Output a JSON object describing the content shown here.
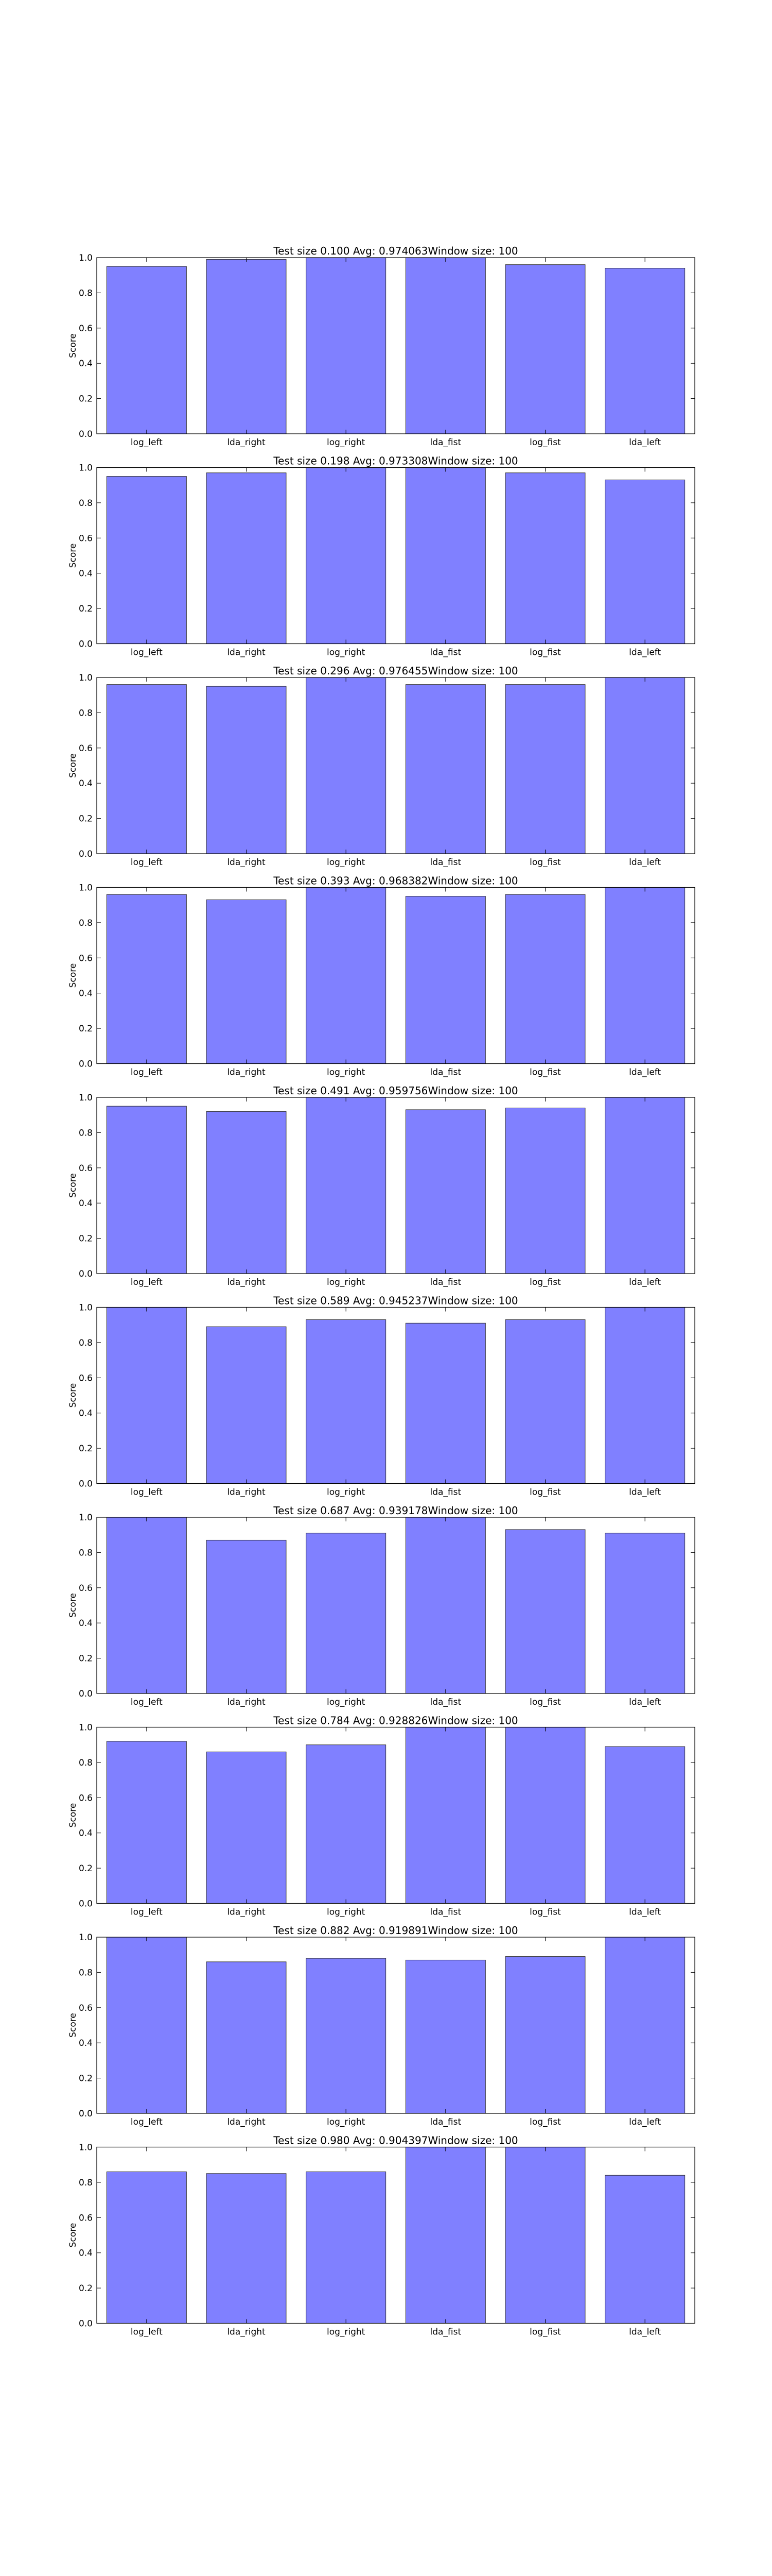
{
  "figure": {
    "background": "#ffffff",
    "bar_color": "#8080ff",
    "bar_edge_color": "#2b2b2b",
    "axes_color": "#000000"
  },
  "chart_data": [
    {
      "type": "bar",
      "title": "Test size 0.100 Avg: 0.974063Window size: 100",
      "xlabel": "",
      "ylabel": "Score",
      "ylim": [
        0,
        1
      ],
      "yticks": [
        "0.0",
        "0.2",
        "0.4",
        "0.6",
        "0.8",
        "1.0"
      ],
      "grid": false,
      "categories": [
        "log_left",
        "lda_right",
        "log_right",
        "lda_fist",
        "log_fist",
        "lda_left"
      ],
      "values": [
        0.95,
        0.99,
        1.0,
        1.0,
        0.96,
        0.94
      ]
    },
    {
      "type": "bar",
      "title": "Test size 0.198 Avg: 0.973308Window size: 100",
      "xlabel": "",
      "ylabel": "Score",
      "ylim": [
        0,
        1
      ],
      "yticks": [
        "0.0",
        "0.2",
        "0.4",
        "0.6",
        "0.8",
        "1.0"
      ],
      "grid": false,
      "categories": [
        "log_left",
        "lda_right",
        "log_right",
        "lda_fist",
        "log_fist",
        "lda_left"
      ],
      "values": [
        0.95,
        0.97,
        1.0,
        1.0,
        0.97,
        0.93
      ]
    },
    {
      "type": "bar",
      "title": "Test size 0.296 Avg: 0.976455Window size: 100",
      "xlabel": "",
      "ylabel": "Score",
      "ylim": [
        0,
        1
      ],
      "yticks": [
        "0.0",
        "0.2",
        "0.4",
        "0.6",
        "0.8",
        "1.0"
      ],
      "grid": false,
      "categories": [
        "log_left",
        "lda_right",
        "log_right",
        "lda_fist",
        "log_fist",
        "lda_left"
      ],
      "values": [
        0.96,
        0.95,
        1.0,
        0.96,
        0.96,
        1.0
      ]
    },
    {
      "type": "bar",
      "title": "Test size 0.393 Avg: 0.968382Window size: 100",
      "xlabel": "",
      "ylabel": "Score",
      "ylim": [
        0,
        1
      ],
      "yticks": [
        "0.0",
        "0.2",
        "0.4",
        "0.6",
        "0.8",
        "1.0"
      ],
      "grid": false,
      "categories": [
        "log_left",
        "lda_right",
        "log_right",
        "lda_fist",
        "log_fist",
        "lda_left"
      ],
      "values": [
        0.96,
        0.93,
        1.0,
        0.95,
        0.96,
        1.0
      ]
    },
    {
      "type": "bar",
      "title": "Test size 0.491 Avg: 0.959756Window size: 100",
      "xlabel": "",
      "ylabel": "Score",
      "ylim": [
        0,
        1
      ],
      "yticks": [
        "0.0",
        "0.2",
        "0.4",
        "0.6",
        "0.8",
        "1.0"
      ],
      "grid": false,
      "categories": [
        "log_left",
        "lda_right",
        "log_right",
        "lda_fist",
        "log_fist",
        "lda_left"
      ],
      "values": [
        0.95,
        0.92,
        1.0,
        0.93,
        0.94,
        1.0
      ]
    },
    {
      "type": "bar",
      "title": "Test size 0.589 Avg: 0.945237Window size: 100",
      "xlabel": "",
      "ylabel": "Score",
      "ylim": [
        0,
        1
      ],
      "yticks": [
        "0.0",
        "0.2",
        "0.4",
        "0.6",
        "0.8",
        "1.0"
      ],
      "grid": false,
      "categories": [
        "log_left",
        "lda_right",
        "log_right",
        "lda_fist",
        "log_fist",
        "lda_left"
      ],
      "values": [
        1.0,
        0.89,
        0.93,
        0.91,
        0.93,
        1.0
      ]
    },
    {
      "type": "bar",
      "title": "Test size 0.687 Avg: 0.939178Window size: 100",
      "xlabel": "",
      "ylabel": "Score",
      "ylim": [
        0,
        1
      ],
      "yticks": [
        "0.0",
        "0.2",
        "0.4",
        "0.6",
        "0.8",
        "1.0"
      ],
      "grid": false,
      "categories": [
        "log_left",
        "lda_right",
        "log_right",
        "lda_fist",
        "log_fist",
        "lda_left"
      ],
      "values": [
        1.0,
        0.87,
        0.91,
        1.0,
        0.93,
        0.91
      ]
    },
    {
      "type": "bar",
      "title": "Test size 0.784 Avg: 0.928826Window size: 100",
      "xlabel": "",
      "ylabel": "Score",
      "ylim": [
        0,
        1
      ],
      "yticks": [
        "0.0",
        "0.2",
        "0.4",
        "0.6",
        "0.8",
        "1.0"
      ],
      "grid": false,
      "categories": [
        "log_left",
        "lda_right",
        "log_right",
        "lda_fist",
        "log_fist",
        "lda_left"
      ],
      "values": [
        0.92,
        0.86,
        0.9,
        1.0,
        1.0,
        0.89
      ]
    },
    {
      "type": "bar",
      "title": "Test size 0.882 Avg: 0.919891Window size: 100",
      "xlabel": "",
      "ylabel": "Score",
      "ylim": [
        0,
        1
      ],
      "yticks": [
        "0.0",
        "0.2",
        "0.4",
        "0.6",
        "0.8",
        "1.0"
      ],
      "grid": false,
      "categories": [
        "log_left",
        "lda_right",
        "log_right",
        "lda_fist",
        "log_fist",
        "lda_left"
      ],
      "values": [
        1.0,
        0.86,
        0.88,
        0.87,
        0.89,
        1.0
      ]
    },
    {
      "type": "bar",
      "title": "Test size 0.980 Avg: 0.904397Window size: 100",
      "xlabel": "",
      "ylabel": "Score",
      "ylim": [
        0,
        1
      ],
      "yticks": [
        "0.0",
        "0.2",
        "0.4",
        "0.6",
        "0.8",
        "1.0"
      ],
      "grid": false,
      "categories": [
        "log_left",
        "lda_right",
        "log_right",
        "lda_fist",
        "log_fist",
        "lda_left"
      ],
      "values": [
        0.86,
        0.85,
        0.86,
        1.0,
        1.0,
        0.84
      ]
    }
  ]
}
